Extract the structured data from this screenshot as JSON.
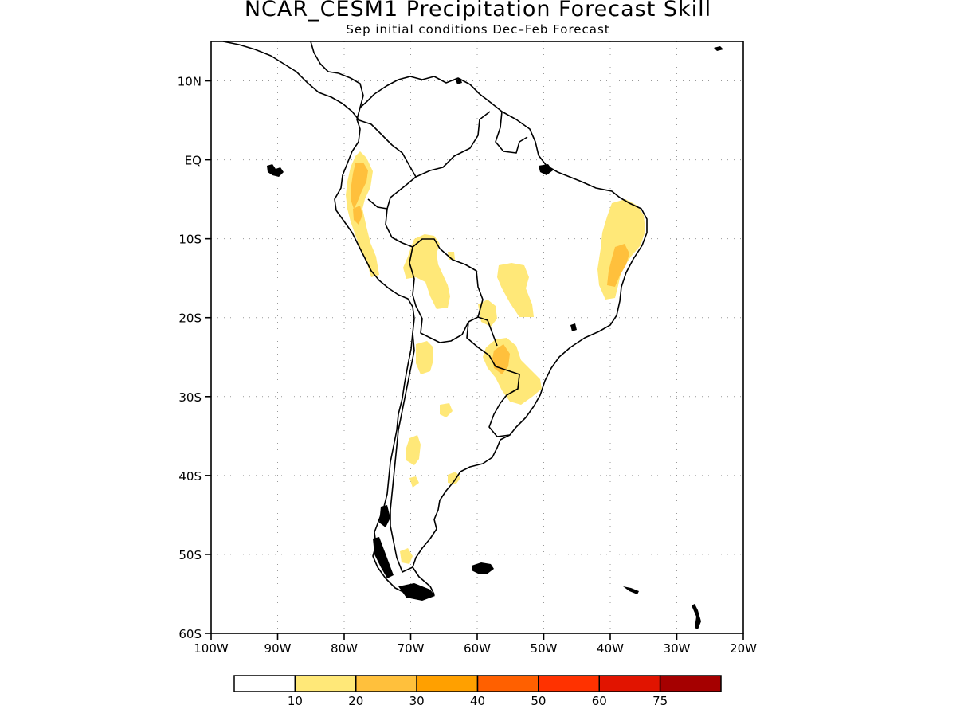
{
  "title": "NCAR_CESM1 Precipitation Forecast Skill",
  "subtitle": "Sep initial conditions  Dec–Feb Forecast",
  "map": {
    "lon_range": [
      -100,
      -20
    ],
    "lat_range": [
      -60,
      15
    ],
    "lat_ticks": [
      {
        "value": 10,
        "label": "10N"
      },
      {
        "value": 0,
        "label": "EQ"
      },
      {
        "value": -10,
        "label": "10S"
      },
      {
        "value": -20,
        "label": "20S"
      },
      {
        "value": -30,
        "label": "30S"
      },
      {
        "value": -40,
        "label": "40S"
      },
      {
        "value": -50,
        "label": "50S"
      },
      {
        "value": -60,
        "label": "60S"
      }
    ],
    "lon_ticks": [
      {
        "value": -100,
        "label": "100W"
      },
      {
        "value": -90,
        "label": "90W"
      },
      {
        "value": -80,
        "label": "80W"
      },
      {
        "value": -70,
        "label": "70W"
      },
      {
        "value": -60,
        "label": "60W"
      },
      {
        "value": -50,
        "label": "50W"
      },
      {
        "value": -40,
        "label": "40W"
      },
      {
        "value": -30,
        "label": "30W"
      },
      {
        "value": -20,
        "label": "20W"
      }
    ],
    "gridlines": "dotted",
    "outline_color": "#000000"
  },
  "colorbar": {
    "colors": [
      "#ffffff",
      "#ffe878",
      "#ffc03c",
      "#ffa000",
      "#ff6000",
      "#ff3200",
      "#e11400",
      "#a50000"
    ],
    "labels": [
      "10",
      "20",
      "30",
      "40",
      "50",
      "60",
      "75"
    ]
  }
}
